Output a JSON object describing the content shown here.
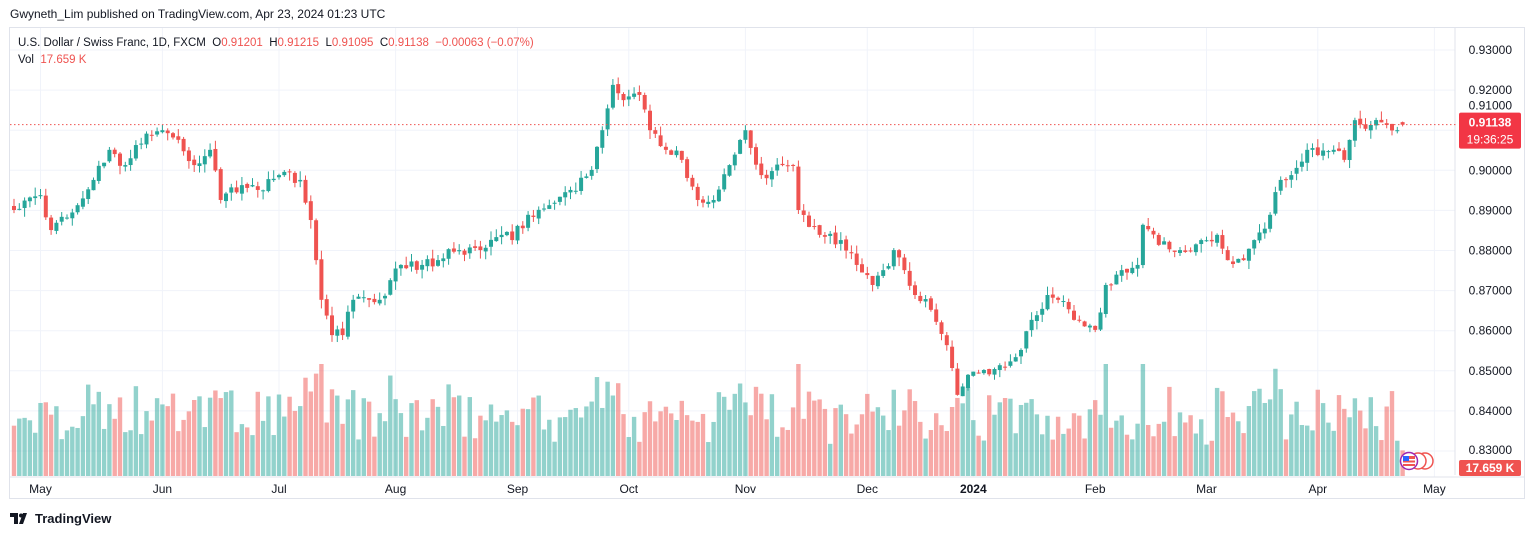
{
  "published": "Gwyneth_Lim published on TradingView.com, Apr 23, 2024 01:23 UTC",
  "legend": {
    "symbol": "U.S. Dollar / Swiss Franc, 1D, FXCM",
    "o_label": "O",
    "o": "0.91201",
    "h_label": "H",
    "h": "0.91215",
    "l_label": "L",
    "l": "0.91095",
    "c_label": "C",
    "c": "0.91138",
    "change": "−0.00063 (−0.07%)",
    "vol_label": "Vol",
    "vol": "17.659 K"
  },
  "last_price_label": "0.91138",
  "countdown": "19:36:25",
  "last_volume_label": "17.659 K",
  "footer": "TradingView",
  "colors": {
    "up": "#26a69a",
    "down": "#ef5350",
    "grid": "#f0f3fa"
  },
  "chart_data": {
    "type": "candlestick",
    "title": "U.S. Dollar / Swiss Franc, 1D, FXCM",
    "ylim": [
      0.8245,
      0.9355
    ],
    "y_ticks": [
      "0.93000",
      "0.92000",
      "0.91000",
      "0.90000",
      "0.89000",
      "0.88000",
      "0.87000",
      "0.86000",
      "0.85000",
      "0.84000",
      "0.83000"
    ],
    "y_tick_values": [
      0.93,
      0.92,
      0.91,
      0.9,
      0.89,
      0.88,
      0.87,
      0.86,
      0.85,
      0.84,
      0.83
    ],
    "x_ticks": [
      {
        "label": "May",
        "day": 5
      },
      {
        "label": "Jun",
        "day": 28
      },
      {
        "label": "Jul",
        "day": 50
      },
      {
        "label": "Aug",
        "day": 72
      },
      {
        "label": "Sep",
        "day": 95
      },
      {
        "label": "Oct",
        "day": 116
      },
      {
        "label": "Nov",
        "day": 138
      },
      {
        "label": "Dec",
        "day": 161
      },
      {
        "label": "2024",
        "day": 181,
        "bold": true
      },
      {
        "label": "Feb",
        "day": 204
      },
      {
        "label": "Mar",
        "day": 225
      },
      {
        "label": "Apr",
        "day": 246
      },
      {
        "label": "May",
        "day": 268
      }
    ],
    "close_anchors_by_trading_day": [
      [
        0,
        0.8901
      ],
      [
        5,
        0.8938
      ],
      [
        7,
        0.8851
      ],
      [
        12,
        0.8913
      ],
      [
        15,
        0.8976
      ],
      [
        18,
        0.9051
      ],
      [
        21,
        0.9013
      ],
      [
        23,
        0.9063
      ],
      [
        28,
        0.91
      ],
      [
        31,
        0.9076
      ],
      [
        34,
        0.9013
      ],
      [
        37,
        0.9051
      ],
      [
        39,
        0.8926
      ],
      [
        43,
        0.8963
      ],
      [
        46,
        0.8951
      ],
      [
        50,
        0.8988
      ],
      [
        54,
        0.8976
      ],
      [
        56,
        0.8876
      ],
      [
        57,
        0.8776
      ],
      [
        58,
        0.8677
      ],
      [
        60,
        0.8589
      ],
      [
        62,
        0.8589
      ],
      [
        64,
        0.8677
      ],
      [
        67,
        0.8677
      ],
      [
        69,
        0.8677
      ],
      [
        71,
        0.8726
      ],
      [
        73,
        0.8764
      ],
      [
        77,
        0.8764
      ],
      [
        80,
        0.8776
      ],
      [
        84,
        0.8801
      ],
      [
        88,
        0.8801
      ],
      [
        92,
        0.8839
      ],
      [
        94,
        0.8826
      ],
      [
        97,
        0.8889
      ],
      [
        101,
        0.8913
      ],
      [
        105,
        0.8951
      ],
      [
        109,
        0.9001
      ],
      [
        111,
        0.91
      ],
      [
        113,
        0.9213
      ],
      [
        115,
        0.9175
      ],
      [
        118,
        0.9188
      ],
      [
        120,
        0.91
      ],
      [
        123,
        0.9051
      ],
      [
        126,
        0.9026
      ],
      [
        129,
        0.8926
      ],
      [
        132,
        0.8926
      ],
      [
        135,
        0.9013
      ],
      [
        138,
        0.91
      ],
      [
        141,
        0.8988
      ],
      [
        145,
        0.9013
      ],
      [
        147,
        0.9013
      ],
      [
        148,
        0.8901
      ],
      [
        152,
        0.8839
      ],
      [
        156,
        0.8826
      ],
      [
        159,
        0.8764
      ],
      [
        162,
        0.8714
      ],
      [
        164,
        0.8751
      ],
      [
        166,
        0.8801
      ],
      [
        168,
        0.8751
      ],
      [
        170,
        0.8689
      ],
      [
        173,
        0.8652
      ],
      [
        176,
        0.8564
      ],
      [
        178,
        0.844
      ],
      [
        180,
        0.849
      ],
      [
        183,
        0.8502
      ],
      [
        186,
        0.8514
      ],
      [
        190,
        0.8552
      ],
      [
        192,
        0.8627
      ],
      [
        195,
        0.8689
      ],
      [
        197,
        0.8677
      ],
      [
        200,
        0.8627
      ],
      [
        204,
        0.8602
      ],
      [
        206,
        0.8714
      ],
      [
        209,
        0.8751
      ],
      [
        212,
        0.8764
      ],
      [
        213,
        0.8864
      ],
      [
        216,
        0.8814
      ],
      [
        220,
        0.8801
      ],
      [
        224,
        0.8826
      ],
      [
        227,
        0.8839
      ],
      [
        229,
        0.8776
      ],
      [
        232,
        0.8776
      ],
      [
        234,
        0.8826
      ],
      [
        237,
        0.8889
      ],
      [
        239,
        0.8976
      ],
      [
        241,
        0.8988
      ],
      [
        244,
        0.9051
      ],
      [
        246,
        0.9038
      ],
      [
        249,
        0.9051
      ],
      [
        251,
        0.9026
      ],
      [
        253,
        0.9125
      ],
      [
        256,
        0.9113
      ],
      [
        259,
        0.9113
      ],
      [
        261,
        0.91
      ],
      [
        262,
        0.91138
      ]
    ],
    "last_candle": {
      "open": 0.91201,
      "high": 0.91215,
      "low": 0.91095,
      "close": 0.91138,
      "volume_k": 17.659
    }
  }
}
